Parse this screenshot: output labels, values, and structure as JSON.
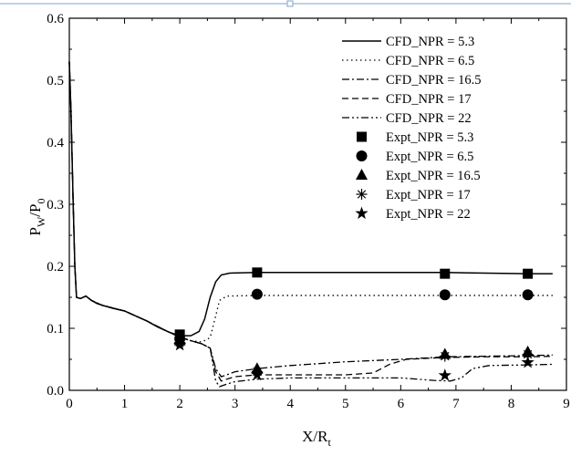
{
  "chart_data": {
    "type": "line",
    "title": "",
    "xlim": [
      0,
      9
    ],
    "ylim": [
      0.0,
      0.6
    ],
    "x_ticks": [
      "0",
      "1",
      "2",
      "3",
      "4",
      "5",
      "6",
      "7",
      "8",
      "9"
    ],
    "y_ticks": [
      "0.0",
      "0.1",
      "0.2",
      "0.3",
      "0.4",
      "0.5",
      "0.6"
    ],
    "xlabel": {
      "main": "X/R",
      "sub": "t"
    },
    "ylabel": {
      "p1": "P",
      "s1": "W",
      "p2": "/P",
      "s2": "0"
    },
    "grid": false,
    "legend_position": "top-right",
    "series": [
      {
        "name": "CFD_NPR = 5.3",
        "kind": "line",
        "dash": "solid",
        "points": [
          [
            0,
            0.53
          ],
          [
            0.03,
            0.45
          ],
          [
            0.07,
            0.3
          ],
          [
            0.1,
            0.2
          ],
          [
            0.13,
            0.15
          ],
          [
            0.2,
            0.148
          ],
          [
            0.3,
            0.152
          ],
          [
            0.4,
            0.145
          ],
          [
            0.5,
            0.14
          ],
          [
            0.6,
            0.137
          ],
          [
            0.8,
            0.132
          ],
          [
            1.0,
            0.128
          ],
          [
            1.2,
            0.12
          ],
          [
            1.4,
            0.112
          ],
          [
            1.6,
            0.102
          ],
          [
            1.8,
            0.094
          ],
          [
            2.0,
            0.088
          ],
          [
            2.2,
            0.088
          ],
          [
            2.35,
            0.095
          ],
          [
            2.45,
            0.115
          ],
          [
            2.55,
            0.15
          ],
          [
            2.65,
            0.175
          ],
          [
            2.75,
            0.186
          ],
          [
            2.9,
            0.189
          ],
          [
            3.4,
            0.19
          ],
          [
            5,
            0.19
          ],
          [
            6.8,
            0.19
          ],
          [
            8.3,
            0.188
          ],
          [
            8.75,
            0.188
          ]
        ]
      },
      {
        "name": "CFD_NPR = 6.5",
        "kind": "line",
        "dash": "dotted",
        "points": [
          [
            0,
            0.53
          ],
          [
            0.03,
            0.45
          ],
          [
            0.07,
            0.3
          ],
          [
            0.1,
            0.2
          ],
          [
            0.13,
            0.15
          ],
          [
            0.2,
            0.148
          ],
          [
            0.3,
            0.152
          ],
          [
            0.4,
            0.145
          ],
          [
            0.6,
            0.137
          ],
          [
            1.0,
            0.128
          ],
          [
            1.4,
            0.112
          ],
          [
            1.8,
            0.094
          ],
          [
            2.0,
            0.086
          ],
          [
            2.2,
            0.08
          ],
          [
            2.4,
            0.078
          ],
          [
            2.55,
            0.085
          ],
          [
            2.65,
            0.12
          ],
          [
            2.72,
            0.145
          ],
          [
            2.85,
            0.152
          ],
          [
            3.4,
            0.153
          ],
          [
            6.8,
            0.153
          ],
          [
            8.3,
            0.153
          ],
          [
            8.75,
            0.153
          ]
        ]
      },
      {
        "name": "CFD_NPR = 16.5",
        "kind": "line",
        "dash": "dashdot",
        "points": [
          [
            0,
            0.53
          ],
          [
            0.03,
            0.45
          ],
          [
            0.07,
            0.3
          ],
          [
            0.1,
            0.2
          ],
          [
            0.13,
            0.15
          ],
          [
            0.2,
            0.148
          ],
          [
            0.3,
            0.152
          ],
          [
            0.4,
            0.145
          ],
          [
            0.6,
            0.137
          ],
          [
            1.0,
            0.128
          ],
          [
            1.4,
            0.112
          ],
          [
            1.8,
            0.094
          ],
          [
            2.0,
            0.086
          ],
          [
            2.2,
            0.08
          ],
          [
            2.4,
            0.075
          ],
          [
            2.55,
            0.068
          ],
          [
            2.65,
            0.035
          ],
          [
            2.75,
            0.022
          ],
          [
            2.85,
            0.025
          ],
          [
            3.0,
            0.03
          ],
          [
            3.4,
            0.035
          ],
          [
            4,
            0.04
          ],
          [
            5,
            0.046
          ],
          [
            6,
            0.05
          ],
          [
            6.8,
            0.054
          ],
          [
            7.5,
            0.055
          ],
          [
            8.3,
            0.056
          ],
          [
            8.75,
            0.057
          ]
        ]
      },
      {
        "name": "CFD_NPR = 17",
        "kind": "line",
        "dash": "dashed",
        "points": [
          [
            0,
            0.53
          ],
          [
            0.03,
            0.45
          ],
          [
            0.07,
            0.3
          ],
          [
            0.1,
            0.2
          ],
          [
            0.13,
            0.15
          ],
          [
            0.2,
            0.148
          ],
          [
            0.3,
            0.152
          ],
          [
            0.4,
            0.145
          ],
          [
            0.6,
            0.137
          ],
          [
            1.0,
            0.128
          ],
          [
            1.4,
            0.112
          ],
          [
            1.8,
            0.094
          ],
          [
            2.0,
            0.086
          ],
          [
            2.2,
            0.08
          ],
          [
            2.4,
            0.075
          ],
          [
            2.55,
            0.068
          ],
          [
            2.65,
            0.03
          ],
          [
            2.75,
            0.015
          ],
          [
            2.85,
            0.018
          ],
          [
            3.0,
            0.022
          ],
          [
            3.4,
            0.025
          ],
          [
            4,
            0.025
          ],
          [
            5,
            0.025
          ],
          [
            5.5,
            0.028
          ],
          [
            5.8,
            0.042
          ],
          [
            6.1,
            0.05
          ],
          [
            6.8,
            0.053
          ],
          [
            7.5,
            0.054
          ],
          [
            8.3,
            0.054
          ],
          [
            8.75,
            0.055
          ]
        ]
      },
      {
        "name": "CFD_NPR = 22",
        "kind": "line",
        "dash": "dashdotdot",
        "points": [
          [
            0,
            0.53
          ],
          [
            0.03,
            0.45
          ],
          [
            0.07,
            0.3
          ],
          [
            0.1,
            0.2
          ],
          [
            0.13,
            0.15
          ],
          [
            0.2,
            0.148
          ],
          [
            0.3,
            0.152
          ],
          [
            0.4,
            0.145
          ],
          [
            0.6,
            0.137
          ],
          [
            1.0,
            0.128
          ],
          [
            1.4,
            0.112
          ],
          [
            1.8,
            0.094
          ],
          [
            2.0,
            0.086
          ],
          [
            2.2,
            0.08
          ],
          [
            2.4,
            0.075
          ],
          [
            2.55,
            0.068
          ],
          [
            2.65,
            0.015
          ],
          [
            2.72,
            0.006
          ],
          [
            2.85,
            0.01
          ],
          [
            3.0,
            0.014
          ],
          [
            3.4,
            0.018
          ],
          [
            4,
            0.02
          ],
          [
            5,
            0.02
          ],
          [
            6,
            0.02
          ],
          [
            6.6,
            0.016
          ],
          [
            6.9,
            0.015
          ],
          [
            7.1,
            0.02
          ],
          [
            7.3,
            0.035
          ],
          [
            7.6,
            0.04
          ],
          [
            8.3,
            0.041
          ],
          [
            8.75,
            0.042
          ]
        ]
      },
      {
        "name": "Expt_NPR = 5.3",
        "kind": "marker",
        "marker": "square",
        "points": [
          [
            2.0,
            0.09
          ],
          [
            3.4,
            0.19
          ],
          [
            6.8,
            0.188
          ],
          [
            8.3,
            0.188
          ]
        ]
      },
      {
        "name": "Expt_NPR = 6.5",
        "kind": "marker",
        "marker": "circle",
        "points": [
          [
            2.0,
            0.083
          ],
          [
            3.4,
            0.155
          ],
          [
            6.8,
            0.154
          ],
          [
            8.3,
            0.154
          ]
        ]
      },
      {
        "name": "Expt_NPR = 16.5",
        "kind": "marker",
        "marker": "triangle",
        "points": [
          [
            2.0,
            0.08
          ],
          [
            3.4,
            0.035
          ],
          [
            6.8,
            0.058
          ],
          [
            8.3,
            0.062
          ]
        ]
      },
      {
        "name": "Expt_NPR = 17",
        "kind": "marker",
        "marker": "asterisk",
        "points": [
          [
            2.0,
            0.077
          ],
          [
            3.4,
            0.03
          ],
          [
            6.8,
            0.055
          ],
          [
            8.3,
            0.058
          ]
        ]
      },
      {
        "name": "Expt_NPR = 22",
        "kind": "marker",
        "marker": "star",
        "points": [
          [
            2.0,
            0.073
          ],
          [
            3.4,
            0.025
          ],
          [
            6.8,
            0.024
          ],
          [
            8.3,
            0.045
          ]
        ]
      }
    ]
  }
}
